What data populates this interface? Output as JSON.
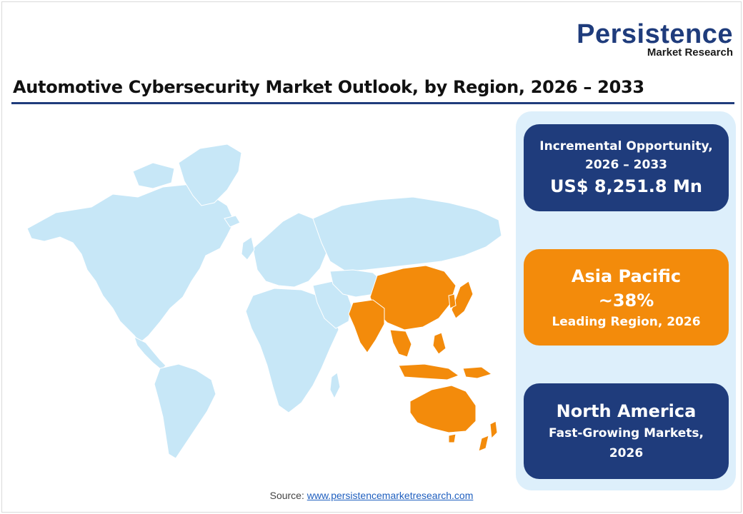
{
  "logo": {
    "main": "Persistence",
    "sub": "Market Research"
  },
  "title": "Automotive Cybersecurity Market Outlook, by Region, 2026 – 2033",
  "colors": {
    "navy": "#1f3c7c",
    "orange": "#f38b0b",
    "map_land": "#c7e7f7",
    "panel_bg": "#ddeffb"
  },
  "map": {
    "highlighted_region": "Asia Pacific"
  },
  "cards": [
    {
      "line1": "Incremental Opportunity,",
      "line2": "2026 – 2033",
      "line3": "US$  8,251.8 Mn"
    },
    {
      "line1": "Asia Pacific",
      "line2": "~38%",
      "line3": "Leading Region, 2026"
    },
    {
      "line1": "North America",
      "line2": "Fast-Growing Markets,",
      "line3": "2026"
    }
  ],
  "source": {
    "label": "Source: ",
    "link": "www.persistencemarketresearch.com"
  }
}
